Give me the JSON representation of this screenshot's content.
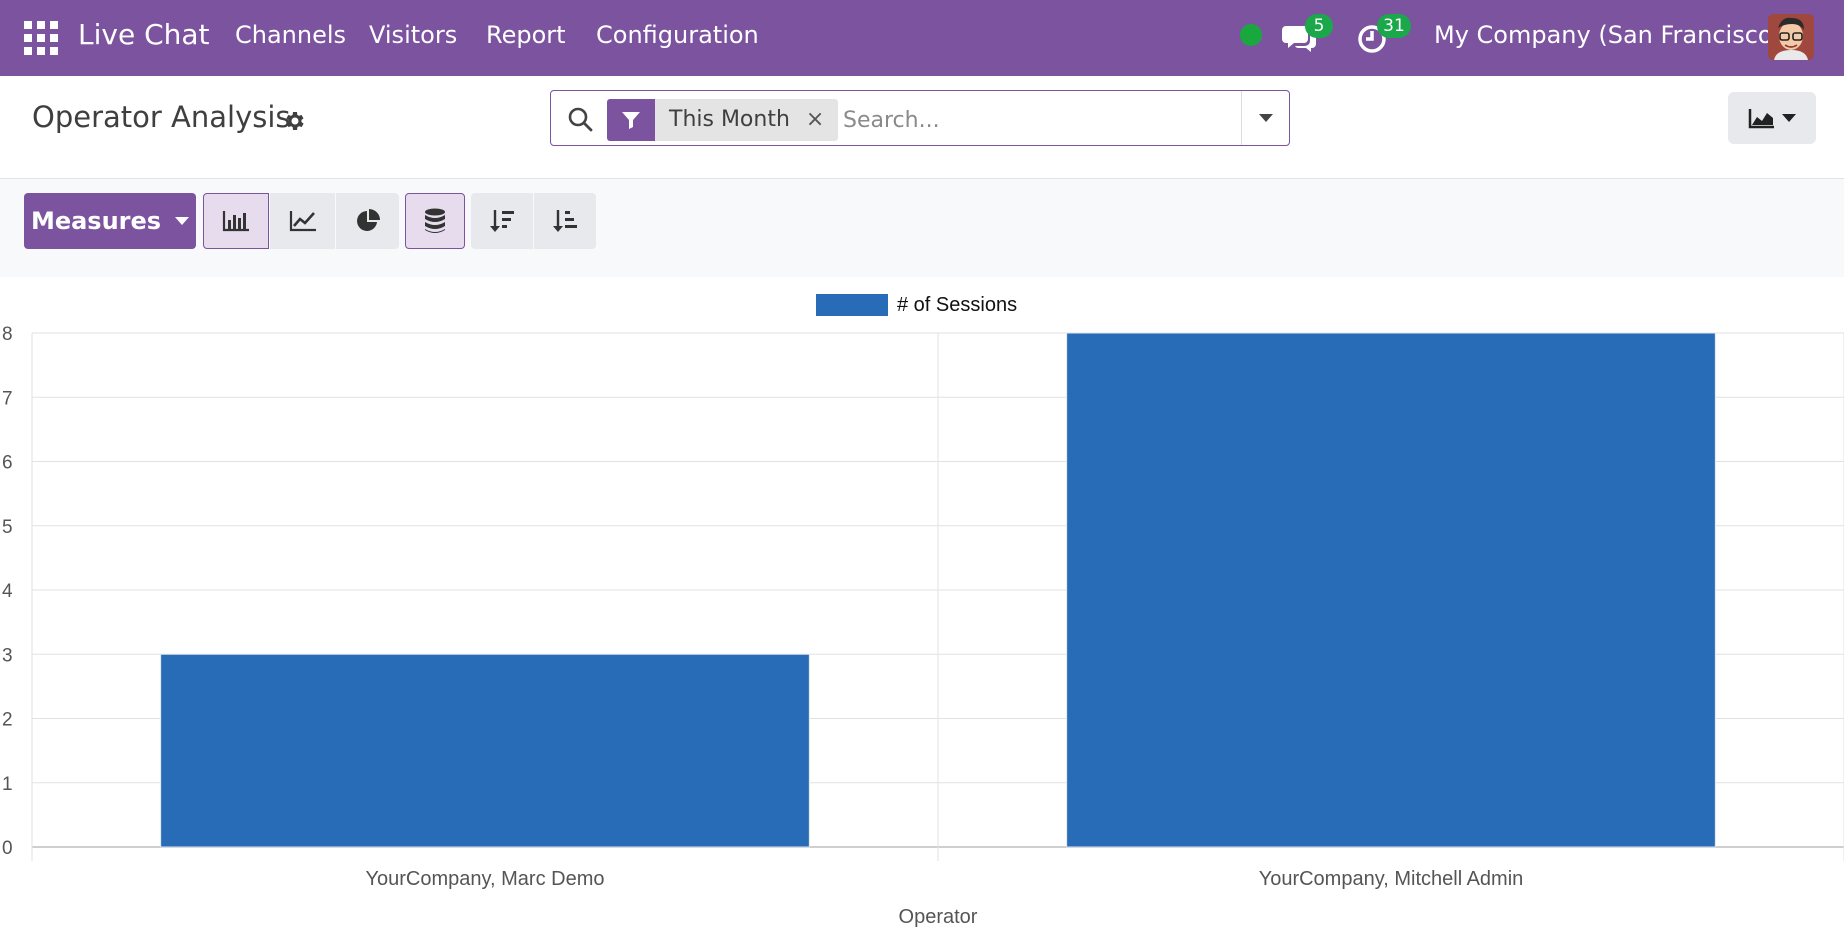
{
  "navbar": {
    "app_name": "Live Chat",
    "menu": [
      "Channels",
      "Visitors",
      "Report",
      "Configuration"
    ],
    "messages_badge": "5",
    "activities_badge": "31",
    "company": "My Company (San Francisco)",
    "status_color": "#18a83e",
    "brand_color": "#7c539f"
  },
  "control_panel": {
    "title": "Operator Analysis",
    "filter_facet": "This Month",
    "search_placeholder": "Search...",
    "search_value": ""
  },
  "toolbar": {
    "measures_label": "Measures",
    "buttons": [
      "bar-chart",
      "line-chart",
      "pie-chart",
      "stacked",
      "sort-descending",
      "sort-ascending"
    ],
    "active": [
      "bar-chart",
      "stacked"
    ]
  },
  "chart_data": {
    "type": "bar",
    "categories": [
      "YourCompany, Marc Demo",
      "YourCompany, Mitchell Admin"
    ],
    "series": [
      {
        "name": "# of Sessions",
        "values": [
          3,
          8
        ],
        "color": "#286bb7"
      }
    ],
    "xlabel": "Operator",
    "ylabel": "",
    "ylim": [
      0,
      8
    ],
    "yticks": [
      0,
      1,
      2,
      3,
      4,
      5,
      6,
      7,
      8
    ],
    "grid": true,
    "legend": "top-center"
  }
}
